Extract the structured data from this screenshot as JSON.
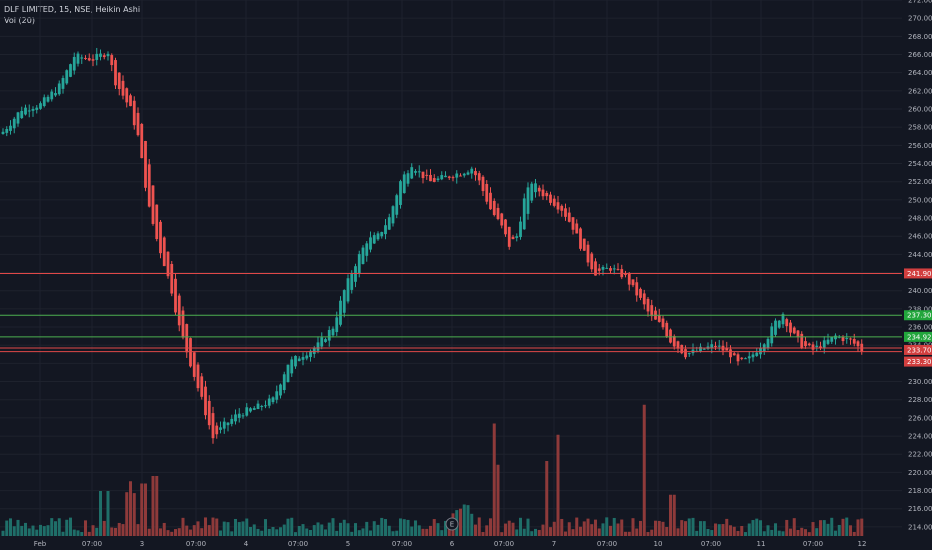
{
  "legend": {
    "symbol_line": "DLF LIMITED, 15, NSE, Heikin Ashi",
    "volume_line": "Vol (20)"
  },
  "colors": {
    "background": "#131722",
    "grid": "#1e222d",
    "up": "#26a69a",
    "down": "#ef5350",
    "vol_up": "#1f6f69",
    "vol_down": "#8e3a3a",
    "resistance_line": "#e04848",
    "support_line": "#4caf50",
    "axis_text": "#b2b5be"
  },
  "chart_data": {
    "type": "candlestick",
    "y_axis": {
      "min": 213,
      "max": 272,
      "ticks": [
        "214.00",
        "216.00",
        "218.00",
        "220.00",
        "222.00",
        "224.00",
        "226.00",
        "228.00",
        "230.00",
        "232.00",
        "234.00",
        "236.00",
        "238.00",
        "240.00",
        "242.00",
        "244.00",
        "246.00",
        "248.00",
        "250.00",
        "252.00",
        "254.00",
        "256.00",
        "258.00",
        "260.00",
        "262.00",
        "264.00",
        "266.00",
        "268.00",
        "270.00",
        "272.00"
      ]
    },
    "x_axis": {
      "labels": [
        "Feb",
        "07:00",
        "3",
        "07:00",
        "4",
        "07:00",
        "5",
        "07:00",
        "6",
        "07:00",
        "7",
        "07:00",
        "10",
        "07:00",
        "11",
        "07:00",
        "12"
      ]
    },
    "anchors": [
      [
        0,
        257.5
      ],
      [
        5,
        260
      ],
      [
        10,
        260.5
      ],
      [
        15,
        262.5
      ],
      [
        19,
        265.8
      ],
      [
        24,
        265.5
      ],
      [
        28,
        266.3
      ],
      [
        30,
        263
      ],
      [
        34,
        260
      ],
      [
        36,
        257
      ],
      [
        39,
        249
      ],
      [
        41,
        245.7
      ],
      [
        43,
        243
      ],
      [
        45,
        240
      ],
      [
        47,
        236
      ],
      [
        50,
        232
      ],
      [
        53,
        228
      ],
      [
        56,
        223.8
      ],
      [
        59,
        225.2
      ],
      [
        63,
        226.5
      ],
      [
        68,
        227.2
      ],
      [
        72,
        228
      ],
      [
        76,
        232
      ],
      [
        80,
        233
      ],
      [
        84,
        234
      ],
      [
        88,
        236
      ],
      [
        91,
        240
      ],
      [
        94,
        243
      ],
      [
        97,
        245.5
      ],
      [
        100,
        246
      ],
      [
        103,
        248
      ],
      [
        106,
        252
      ],
      [
        109,
        254
      ],
      [
        111,
        253
      ],
      [
        114,
        252
      ],
      [
        118,
        252.5
      ],
      [
        122,
        253
      ],
      [
        125,
        253.5
      ],
      [
        127,
        252
      ],
      [
        130,
        249
      ],
      [
        133,
        247
      ],
      [
        135,
        245
      ],
      [
        137,
        246
      ],
      [
        139,
        250
      ],
      [
        141,
        252
      ],
      [
        143,
        251
      ],
      [
        146,
        250
      ],
      [
        149,
        249
      ],
      [
        152,
        247
      ],
      [
        155,
        244
      ],
      [
        158,
        242
      ],
      [
        162,
        242.5
      ],
      [
        166,
        241.5
      ],
      [
        170,
        239
      ],
      [
        173,
        237
      ],
      [
        176,
        236
      ],
      [
        178,
        234.5
      ],
      [
        182,
        233
      ],
      [
        186,
        233.5
      ],
      [
        190,
        234
      ],
      [
        194,
        233
      ],
      [
        196,
        232
      ],
      [
        199,
        232.5
      ],
      [
        202,
        234
      ],
      [
        204,
        235
      ],
      [
        206,
        236.5
      ],
      [
        208,
        237.5
      ],
      [
        210,
        235.5
      ],
      [
        213,
        234
      ],
      [
        216,
        233.5
      ],
      [
        219,
        234.2
      ],
      [
        222,
        235
      ],
      [
        226,
        234.5
      ],
      [
        229,
        233.5
      ]
    ],
    "candles": [],
    "volumes": [],
    "price_lines": [
      {
        "price": 241.9,
        "label": "241.90",
        "kind": "resistance"
      },
      {
        "price": 237.3,
        "label": "237.30",
        "kind": "support"
      },
      {
        "price": 234.92,
        "label": "234.92",
        "kind": "support"
      },
      {
        "price": 233.7,
        "label": "233.70",
        "kind": "resistance"
      },
      {
        "price": 233.3,
        "label": "233.30",
        "kind": "resistance"
      }
    ],
    "events": [
      {
        "label": "E",
        "bar": 128
      }
    ],
    "grid": true,
    "legend_position": "top-left"
  }
}
